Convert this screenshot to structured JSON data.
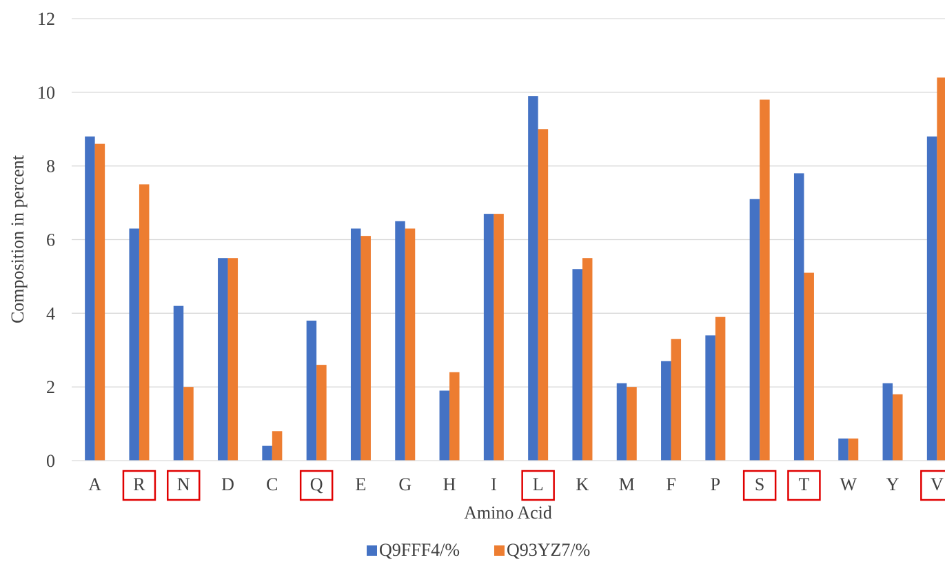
{
  "chart_data": {
    "type": "bar",
    "title": "",
    "xlabel": "Amino Acid",
    "ylabel": "Composition in percent",
    "ylim": [
      0,
      12
    ],
    "yticks": [
      "0",
      "2",
      "4",
      "6",
      "8",
      "10",
      "12"
    ],
    "grid": true,
    "legend_position": "bottom",
    "categories": [
      "A",
      "R",
      "N",
      "D",
      "C",
      "Q",
      "E",
      "G",
      "H",
      "I",
      "L",
      "K",
      "M",
      "F",
      "P",
      "S",
      "T",
      "W",
      "Y",
      "V"
    ],
    "highlighted_categories": [
      "R",
      "N",
      "Q",
      "L",
      "S",
      "T",
      "V"
    ],
    "series": [
      {
        "name": "Q9FFF4/%",
        "color": "#4472c4",
        "values": [
          8.8,
          6.3,
          4.2,
          5.5,
          0.4,
          3.8,
          6.3,
          6.5,
          1.9,
          6.7,
          9.9,
          5.2,
          2.1,
          2.7,
          3.4,
          7.1,
          7.8,
          0.6,
          2.1,
          8.8
        ]
      },
      {
        "name": "Q93YZ7/%",
        "color": "#ed7d31",
        "values": [
          8.6,
          7.5,
          2.0,
          5.5,
          0.8,
          2.6,
          6.1,
          6.3,
          2.4,
          6.7,
          9.0,
          5.5,
          2.0,
          3.3,
          3.9,
          9.8,
          5.1,
          0.6,
          1.8,
          10.4
        ]
      }
    ],
    "highlight_color": "#e00000"
  }
}
